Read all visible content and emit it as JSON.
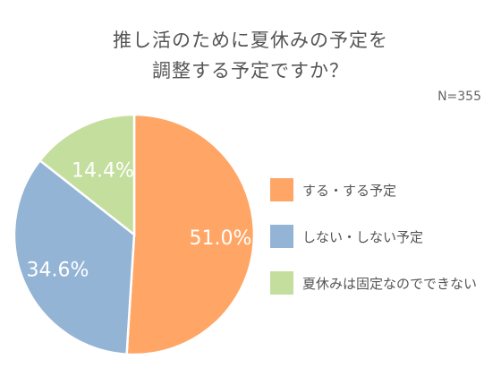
{
  "title_line1": "推し活のために夏休みの予定を",
  "title_line2": "調整する予定ですか？",
  "sample_size": "N=355",
  "chart_data": {
    "type": "pie",
    "title": "推し活のために夏休みの予定を調整する予定ですか？",
    "unit": "%",
    "legend_position": "right",
    "slices": [
      {
        "label": "する・する予定",
        "value": 51.0,
        "display": "51.0%",
        "color": "#FFA666"
      },
      {
        "label": "しない・しない予定",
        "value": 34.6,
        "display": "34.6%",
        "color": "#94B4D6"
      },
      {
        "label": "夏休みは固定なのでできない",
        "value": 14.4,
        "display": "14.4%",
        "color": "#C4DE9E"
      }
    ]
  }
}
